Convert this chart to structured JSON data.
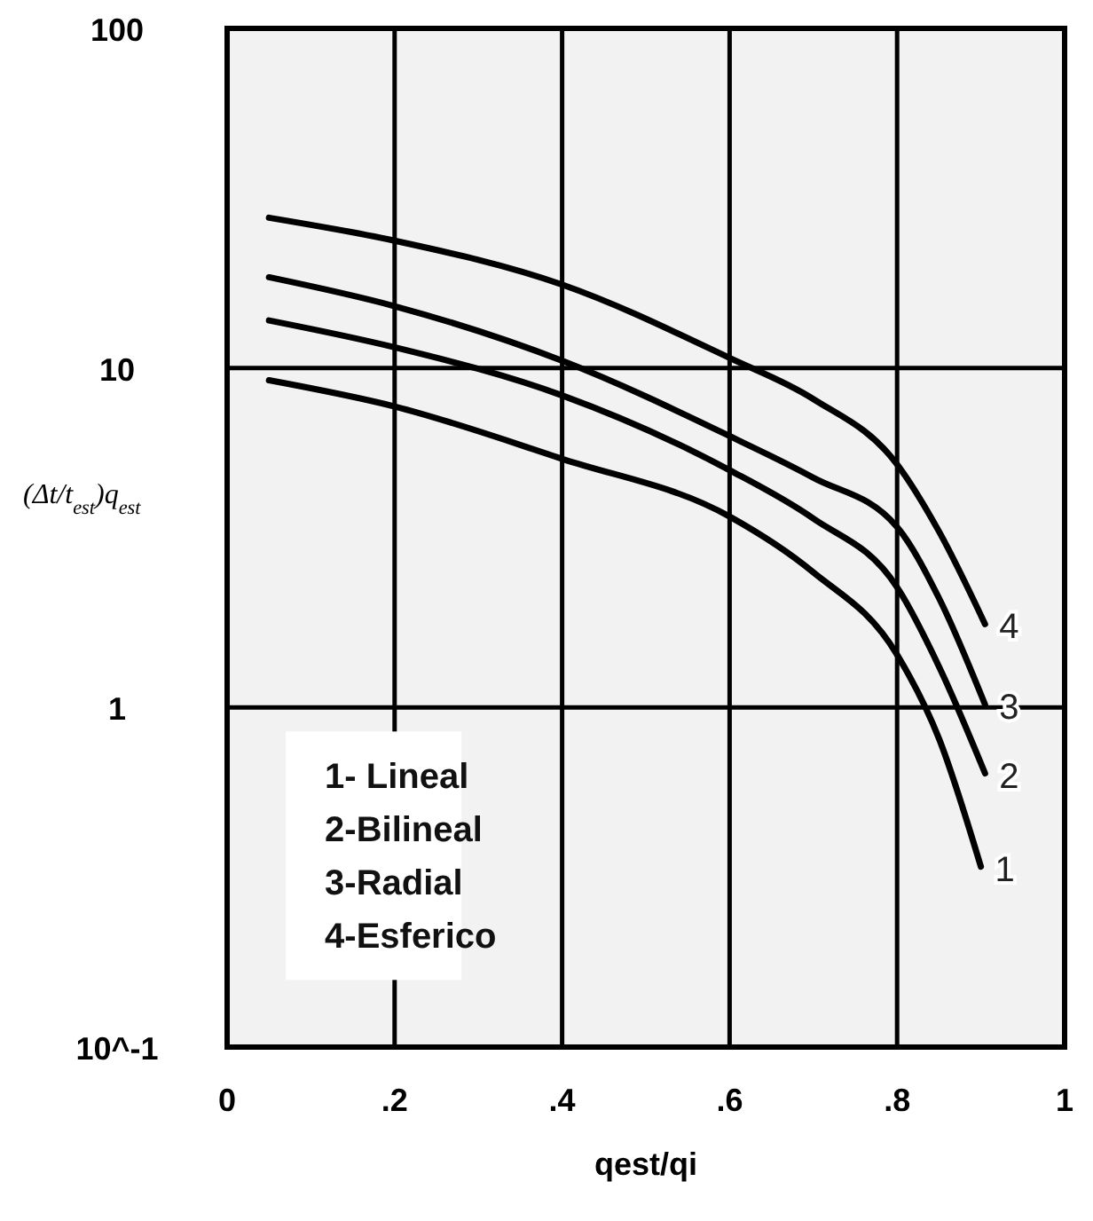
{
  "chart_data": {
    "type": "line",
    "xlabel": "qest/qi",
    "ylabel": "(Δt/t$_{est}$)q$_{est}$",
    "xlim": [
      0,
      1
    ],
    "ylim": [
      0.1,
      100
    ],
    "log": "y",
    "grid": true,
    "marker": "none",
    "line_style": "solid",
    "xticks": [
      0,
      {
        "value": 0.2,
        "label": ".2"
      },
      {
        "value": 0.4,
        "label": ".4"
      },
      {
        "value": 0.6,
        "label": ".6"
      },
      {
        "value": 0.8,
        "label": ".8"
      },
      1
    ],
    "yticks": [
      {
        "value": 0.1,
        "label": "10^-1"
      },
      1,
      10,
      100
    ],
    "annotations": [
      "1- Lineal",
      "2-Bilineal",
      "3-Radial",
      "4-Esferico"
    ],
    "series": [
      {
        "name": "1",
        "color": "#000000",
        "x": [
          0.05,
          0.2,
          0.4,
          0.6,
          0.7,
          0.8,
          0.85,
          0.9
        ],
        "values": [
          9.2,
          7.7,
          5.4,
          3.65,
          2.5,
          1.43,
          0.81,
          0.34
        ]
      },
      {
        "name": "2",
        "color": "#000000",
        "x": [
          0.05,
          0.2,
          0.4,
          0.6,
          0.7,
          0.8,
          0.85,
          0.905
        ],
        "values": [
          13.8,
          11.5,
          8.3,
          5.0,
          3.6,
          2.26,
          1.32,
          0.64
        ]
      },
      {
        "name": "3",
        "color": "#000000",
        "x": [
          0.05,
          0.2,
          0.4,
          0.6,
          0.7,
          0.8,
          0.85,
          0.905
        ],
        "values": [
          18.5,
          15.2,
          10.5,
          6.3,
          4.75,
          3.4,
          2.1,
          1.02
        ]
      },
      {
        "name": "4",
        "color": "#000000",
        "x": [
          0.05,
          0.2,
          0.4,
          0.6,
          0.7,
          0.8,
          0.85,
          0.905
        ],
        "values": [
          27.7,
          23.7,
          17.6,
          10.7,
          8.1,
          5.2,
          3.3,
          1.76
        ]
      }
    ]
  }
}
